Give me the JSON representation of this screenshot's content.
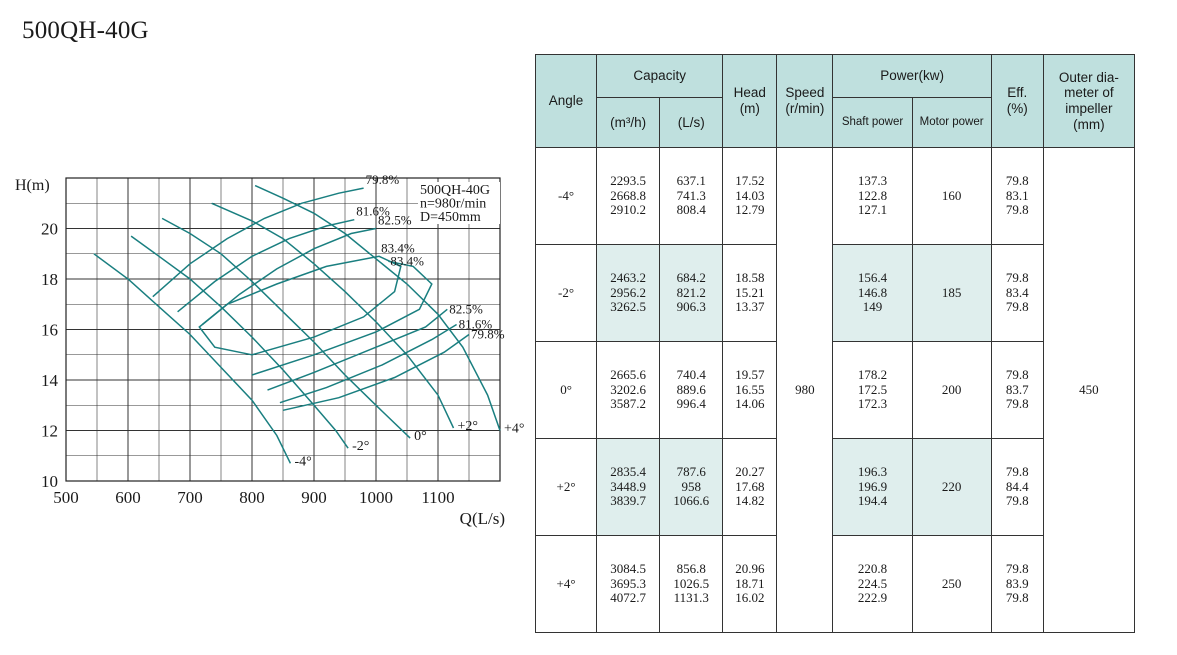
{
  "title": "500QH-40G",
  "chart_data": {
    "type": "line",
    "xlabel": "Q(L/s)",
    "ylabel": "H(m)",
    "xlim": [
      500,
      1200
    ],
    "ylim": [
      10,
      22
    ],
    "x_ticks": [
      500,
      600,
      700,
      800,
      900,
      1000,
      1100
    ],
    "y_ticks": [
      10,
      12,
      14,
      16,
      18,
      20
    ],
    "grid": true,
    "legend_box": [
      "500QH-40G",
      "n=980r/min",
      "D=450mm"
    ],
    "series": [
      {
        "name": "-4°",
        "points": [
          [
            545,
            19.0
          ],
          [
            600,
            18.0
          ],
          [
            650,
            16.9
          ],
          [
            700,
            15.8
          ],
          [
            750,
            14.5
          ],
          [
            800,
            13.2
          ],
          [
            840,
            11.8
          ],
          [
            862,
            10.7
          ]
        ]
      },
      {
        "name": "-2°",
        "points": [
          [
            605,
            19.7
          ],
          [
            650,
            18.9
          ],
          [
            700,
            18.0
          ],
          [
            750,
            16.9
          ],
          [
            800,
            15.7
          ],
          [
            850,
            14.4
          ],
          [
            900,
            13.0
          ],
          [
            935,
            12.0
          ],
          [
            955,
            11.3
          ]
        ]
      },
      {
        "name": "0°",
        "points": [
          [
            655,
            20.4
          ],
          [
            700,
            19.8
          ],
          [
            750,
            19.0
          ],
          [
            800,
            17.9
          ],
          [
            850,
            16.7
          ],
          [
            900,
            15.5
          ],
          [
            950,
            14.2
          ],
          [
            1000,
            13.0
          ],
          [
            1055,
            11.7
          ]
        ]
      },
      {
        "name": "+2°",
        "points": [
          [
            735,
            21.0
          ],
          [
            800,
            20.3
          ],
          [
            850,
            19.6
          ],
          [
            900,
            18.6
          ],
          [
            950,
            17.5
          ],
          [
            1000,
            16.3
          ],
          [
            1050,
            15.0
          ],
          [
            1100,
            13.4
          ],
          [
            1125,
            12.1
          ]
        ]
      },
      {
        "name": "+4°",
        "points": [
          [
            805,
            21.7
          ],
          [
            850,
            21.2
          ],
          [
            900,
            20.6
          ],
          [
            950,
            19.8
          ],
          [
            1000,
            18.8
          ],
          [
            1050,
            17.8
          ],
          [
            1100,
            16.6
          ],
          [
            1140,
            15.3
          ],
          [
            1180,
            13.4
          ],
          [
            1200,
            12.0
          ]
        ]
      }
    ],
    "efficiency_curves": [
      {
        "label": "79.8%",
        "points": [
          [
            640,
            17.3
          ],
          [
            700,
            18.6
          ],
          [
            760,
            19.6
          ],
          [
            820,
            20.4
          ],
          [
            880,
            21.0
          ],
          [
            940,
            21.4
          ],
          [
            980,
            21.6
          ]
        ],
        "pos": "start"
      },
      {
        "label": "81.6%",
        "points": [
          [
            680,
            16.7
          ],
          [
            740,
            17.9
          ],
          [
            800,
            18.9
          ],
          [
            860,
            19.6
          ],
          [
            920,
            20.1
          ],
          [
            965,
            20.35
          ]
        ],
        "pos": "start"
      },
      {
        "label": "82.5%",
        "points": [
          [
            720,
            16.2
          ],
          [
            780,
            17.4
          ],
          [
            840,
            18.4
          ],
          [
            900,
            19.2
          ],
          [
            960,
            19.8
          ],
          [
            1000,
            20.0
          ]
        ],
        "pos": "start"
      },
      {
        "label": "83.4%",
        "points": [
          [
            800,
            15.0
          ],
          [
            740,
            15.3
          ],
          [
            715,
            16.1
          ],
          [
            760,
            17.0
          ],
          [
            840,
            17.8
          ],
          [
            920,
            18.5
          ],
          [
            1005,
            18.9
          ],
          [
            1040,
            18.5
          ],
          [
            1030,
            17.5
          ],
          [
            980,
            16.5
          ],
          [
            900,
            15.7
          ],
          [
            800,
            15.0
          ]
        ],
        "pos": "top"
      },
      {
        "label": "83.4%",
        "points": [
          [
            800,
            14.2
          ],
          [
            900,
            15.0
          ],
          [
            1000,
            15.9
          ],
          [
            1070,
            16.8
          ],
          [
            1090,
            17.8
          ],
          [
            1060,
            18.5
          ],
          [
            1020,
            18.7
          ]
        ],
        "pos": "end"
      },
      {
        "label": "82.5%",
        "points": [
          [
            825,
            13.6
          ],
          [
            900,
            14.3
          ],
          [
            1000,
            15.3
          ],
          [
            1080,
            16.1
          ],
          [
            1115,
            16.8
          ]
        ],
        "pos": "end"
      },
      {
        "label": "81.6%",
        "points": [
          [
            845,
            13.1
          ],
          [
            920,
            13.7
          ],
          [
            1010,
            14.6
          ],
          [
            1090,
            15.6
          ],
          [
            1130,
            16.2
          ]
        ],
        "pos": "end"
      },
      {
        "label": "79.8%",
        "points": [
          [
            850,
            12.8
          ],
          [
            940,
            13.3
          ],
          [
            1030,
            14.1
          ],
          [
            1110,
            15.1
          ],
          [
            1150,
            15.8
          ]
        ],
        "pos": "end"
      }
    ]
  },
  "table": {
    "headers": {
      "angle": "Angle",
      "capacity": "Capacity",
      "capacity_m3h": "(m³/h)",
      "capacity_ls": "(L/s)",
      "head": "Head\n(m)",
      "speed": "Speed\n(r/min)",
      "power": "Power(kw)",
      "shaft_power": "Shaft power",
      "motor_power": "Motor power",
      "eff": "Eff.\n(%)",
      "outer_dia": "Outer dia-\nmeter of\nimpeller\n(mm)"
    },
    "speed": "980",
    "outer_diameter": "450",
    "rows": [
      {
        "angle": "-4°",
        "m3h": "2293.5\n2668.8\n2910.2",
        "ls": "637.1\n741.3\n808.4",
        "head": "17.52\n14.03\n12.79",
        "shaft": "137.3\n122.8\n127.1",
        "motor": "160",
        "eff": "79.8\n83.1\n79.8"
      },
      {
        "angle": "-2°",
        "m3h": "2463.2\n2956.2\n3262.5",
        "ls": "684.2\n821.2\n906.3",
        "head": "18.58\n15.21\n13.37",
        "shaft": "156.4\n146.8\n149",
        "motor": "185",
        "eff": "79.8\n83.4\n79.8"
      },
      {
        "angle": "0°",
        "m3h": "2665.6\n3202.6\n3587.2",
        "ls": "740.4\n889.6\n996.4",
        "head": "19.57\n16.55\n14.06",
        "shaft": "178.2\n172.5\n172.3",
        "motor": "200",
        "eff": "79.8\n83.7\n79.8"
      },
      {
        "angle": "+2°",
        "m3h": "2835.4\n3448.9\n3839.7",
        "ls": "787.6\n958\n1066.6",
        "head": "20.27\n17.68\n14.82",
        "shaft": "196.3\n196.9\n194.4",
        "motor": "220",
        "eff": "79.8\n84.4\n79.8"
      },
      {
        "angle": "+4°",
        "m3h": "3084.5\n3695.3\n4072.7",
        "ls": "856.8\n1026.5\n1131.3",
        "head": "20.96\n18.71\n16.02",
        "shaft": "220.8\n224.5\n222.9",
        "motor": "250",
        "eff": "79.8\n83.9\n79.8"
      }
    ]
  },
  "colors": {
    "curve": "#1a7f80",
    "header_bg": "#bfe0de",
    "row_shade": "#dfeeed"
  }
}
